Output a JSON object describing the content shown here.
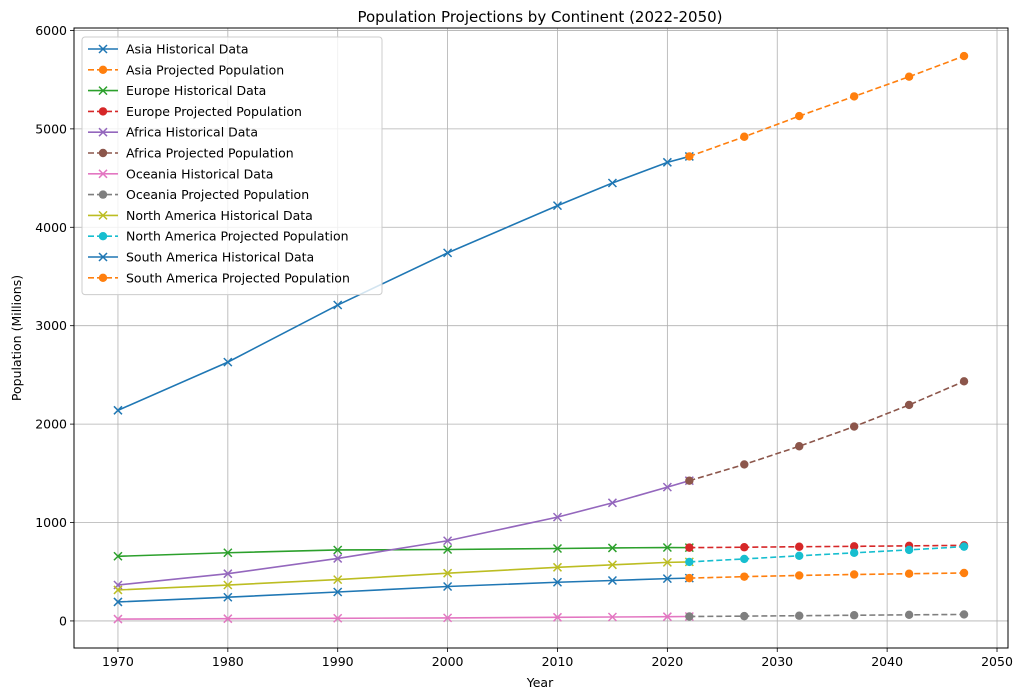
{
  "chart_data": {
    "type": "line",
    "title": "Population Projections by Continent (2022-2050)",
    "xlabel": "Year",
    "ylabel": "Population (Millions)",
    "xlim": [
      1966,
      2051
    ],
    "ylim": [
      -275,
      6025
    ],
    "xticks": [
      1970,
      1980,
      1990,
      2000,
      2010,
      2020,
      2030,
      2040,
      2050
    ],
    "yticks": [
      0,
      1000,
      2000,
      3000,
      4000,
      5000,
      6000
    ],
    "grid": true,
    "legend_position": "upper-left",
    "series": [
      {
        "name": "Asia Historical Data",
        "color": "#1f77b4",
        "style": "solid",
        "marker": "x",
        "x": [
          1970,
          1980,
          1990,
          2000,
          2010,
          2015,
          2020,
          2022
        ],
        "y": [
          2140,
          2630,
          3210,
          3740,
          4220,
          4450,
          4660,
          4720
        ]
      },
      {
        "name": "Asia Projected Population",
        "color": "#ff7f0e",
        "style": "dashed",
        "marker": "o",
        "x": [
          2022,
          2027,
          2032,
          2037,
          2042,
          2047
        ],
        "y": [
          4720,
          4920,
          5130,
          5330,
          5530,
          5740
        ]
      },
      {
        "name": "Europe Historical Data",
        "color": "#2ca02c",
        "style": "solid",
        "marker": "x",
        "x": [
          1970,
          1980,
          1990,
          2000,
          2010,
          2015,
          2020,
          2022
        ],
        "y": [
          657,
          693,
          721,
          726,
          736,
          742,
          746,
          745
        ]
      },
      {
        "name": "Europe Projected Population",
        "color": "#d62728",
        "style": "dashed",
        "marker": "o",
        "x": [
          2022,
          2027,
          2032,
          2037,
          2042,
          2047
        ],
        "y": [
          745,
          749,
          754,
          758,
          763,
          768
        ]
      },
      {
        "name": "Africa Historical Data",
        "color": "#9467bd",
        "style": "solid",
        "marker": "x",
        "x": [
          1970,
          1980,
          1990,
          2000,
          2010,
          2015,
          2020,
          2022
        ],
        "y": [
          365,
          480,
          635,
          815,
          1055,
          1200,
          1360,
          1425
        ]
      },
      {
        "name": "Africa Projected Population",
        "color": "#8c564b",
        "style": "dashed",
        "marker": "o",
        "x": [
          2022,
          2027,
          2032,
          2037,
          2042,
          2047
        ],
        "y": [
          1425,
          1590,
          1775,
          1975,
          2195,
          2435
        ]
      },
      {
        "name": "Oceania Historical Data",
        "color": "#e377c2",
        "style": "solid",
        "marker": "x",
        "x": [
          1970,
          1980,
          1990,
          2000,
          2010,
          2015,
          2020,
          2022
        ],
        "y": [
          19,
          23,
          27,
          31,
          37,
          40,
          43,
          45
        ]
      },
      {
        "name": "Oceania Projected Population",
        "color": "#7f7f7f",
        "style": "dashed",
        "marker": "o",
        "x": [
          2022,
          2027,
          2032,
          2037,
          2042,
          2047
        ],
        "y": [
          45,
          49,
          53,
          58,
          62,
          66
        ]
      },
      {
        "name": "North America Historical Data",
        "color": "#bcbd22",
        "style": "solid",
        "marker": "x",
        "x": [
          1970,
          1980,
          1990,
          2000,
          2010,
          2015,
          2020,
          2022
        ],
        "y": [
          315,
          365,
          420,
          485,
          545,
          570,
          595,
          600
        ]
      },
      {
        "name": "North America Projected Population",
        "color": "#17becf",
        "style": "dashed",
        "marker": "o",
        "x": [
          2022,
          2027,
          2032,
          2037,
          2042,
          2047
        ],
        "y": [
          600,
          630,
          662,
          692,
          722,
          755
        ]
      },
      {
        "name": "South America Historical Data",
        "color": "#1f77b4",
        "style": "solid",
        "marker": "x",
        "x": [
          1970,
          1980,
          1990,
          2000,
          2010,
          2015,
          2020,
          2022
        ],
        "y": [
          193,
          241,
          294,
          350,
          393,
          411,
          430,
          435
        ]
      },
      {
        "name": "South America Projected Population",
        "color": "#ff7f0e",
        "style": "dashed",
        "marker": "o",
        "x": [
          2022,
          2027,
          2032,
          2037,
          2042,
          2047
        ],
        "y": [
          435,
          450,
          462,
          472,
          480,
          487
        ]
      }
    ]
  }
}
